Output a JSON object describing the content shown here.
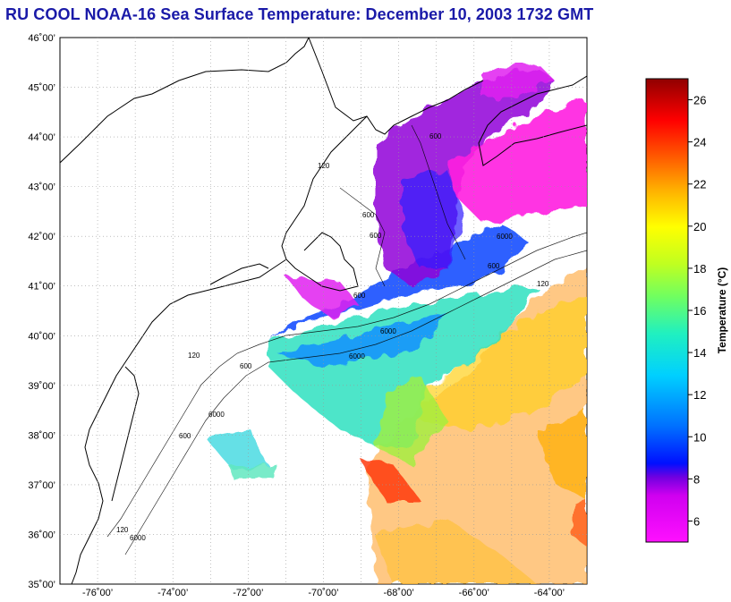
{
  "title": "RU COOL  NOAA-16  Sea Surface Temperature:  December 10, 2003 1732 GMT",
  "map": {
    "lat_labels": [
      "46˚00’",
      "45˚00’",
      "44˚00’",
      "43˚00’",
      "42˚00’",
      "41˚00’",
      "40˚00’",
      "39˚00’",
      "38˚00’",
      "37˚00’",
      "36˚00’",
      "35˚00’"
    ],
    "lon_labels": [
      "-76˚00’",
      "-74˚00’",
      "-72˚00’",
      "-70˚00’",
      "-68˚00’",
      "-66˚00’",
      "-64˚00’"
    ],
    "contour_labels": [
      "120",
      "600",
      "6000",
      "600",
      "600",
      "6000",
      "600",
      "6000",
      "120",
      "600",
      "6000",
      "120",
      "600",
      "6000",
      "120",
      "600"
    ]
  },
  "colorbar": {
    "title": "Temperature (°C)",
    "ticks": [
      "26",
      "24",
      "22",
      "20",
      "18",
      "16",
      "14",
      "12",
      "10",
      "8",
      "6"
    ]
  },
  "chart_data": {
    "type": "heatmap",
    "title": "RU COOL  NOAA-16  Sea Surface Temperature:  December 10, 2003 1732 GMT",
    "xlabel": "",
    "ylabel": "",
    "xlim": [
      -77,
      -63
    ],
    "ylim": [
      35,
      46
    ],
    "colorbar_label": "Temperature (°C)",
    "colorbar_range": [
      5,
      27
    ],
    "colorbar_ticks": [
      6,
      8,
      10,
      12,
      14,
      16,
      18,
      20,
      22,
      24,
      26
    ],
    "grid": true,
    "colorscale": [
      "#ff10ff",
      "#b000e0",
      "#1010ff",
      "#10c8ff",
      "#30f0b0",
      "#a0ff30",
      "#ffff10",
      "#ff9010",
      "#ff2000",
      "#a00000"
    ]
  }
}
